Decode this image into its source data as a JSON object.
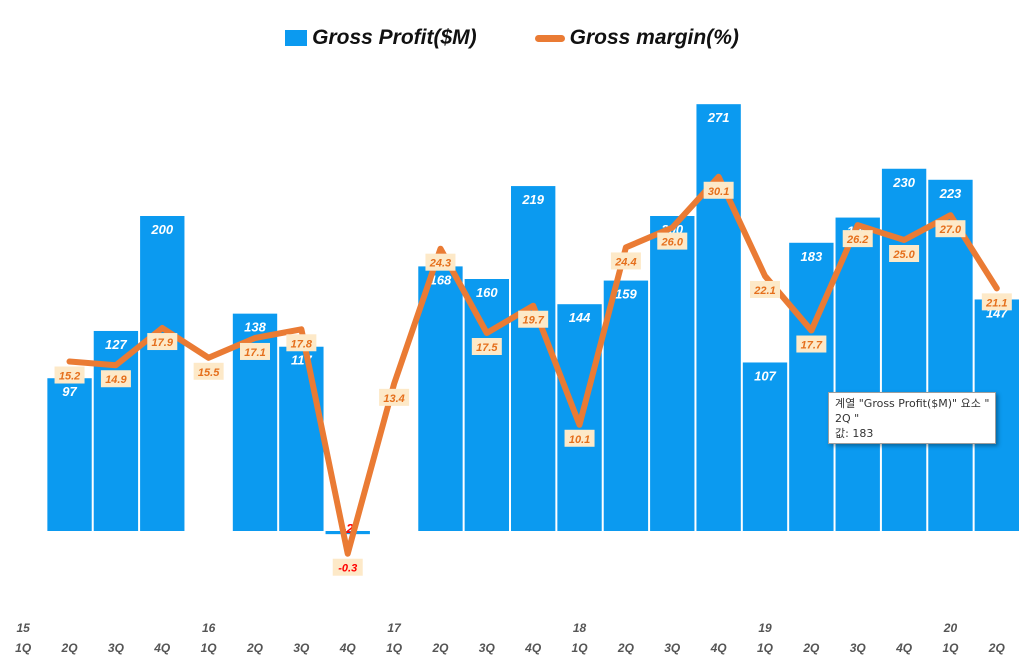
{
  "legend": {
    "bar_label": "Gross Profit($M)",
    "line_label": "Gross margin(%)"
  },
  "tooltip": {
    "line1": "계열 \"Gross Profit($M)\" 요소 \"",
    "line2": "2Q \"",
    "line3": "값: 183"
  },
  "colors": {
    "bar": "#0b9af0",
    "line": "#ea7b34",
    "line_label_bg": "#fde9c8",
    "line_label_text": "#e56f1c",
    "negative_label": "#ff0000",
    "axis_text": "#555555"
  },
  "chart_data": {
    "type": "bar",
    "title": "",
    "categories": [
      "1Q",
      "2Q",
      "3Q",
      "4Q",
      "1Q",
      "2Q",
      "3Q",
      "4Q",
      "1Q",
      "2Q",
      "3Q",
      "4Q",
      "1Q",
      "2Q",
      "3Q",
      "4Q",
      "1Q",
      "2Q",
      "3Q",
      "4Q",
      "1Q",
      "2Q"
    ],
    "year_labels": [
      "15",
      "",
      "",
      "",
      "16",
      "",
      "",
      "",
      "17",
      "",
      "",
      "",
      "18",
      "",
      "",
      "",
      "19",
      "",
      "",
      "",
      "20",
      ""
    ],
    "series": [
      {
        "name": "Gross Profit($M)",
        "type": "bar",
        "values": [
          null,
          97,
          127,
          200,
          null,
          138,
          117,
          -2,
          null,
          168,
          160,
          219,
          144,
          159,
          200,
          271,
          107,
          183,
          199,
          230,
          223,
          147
        ]
      },
      {
        "name": "Gross margin(%)",
        "type": "line",
        "values": [
          null,
          15.2,
          14.9,
          17.9,
          15.5,
          17.1,
          17.8,
          -0.3,
          13.4,
          24.3,
          17.5,
          19.7,
          10.1,
          24.4,
          26.0,
          30.1,
          22.1,
          17.7,
          26.2,
          25.0,
          27.0,
          21.1
        ]
      }
    ],
    "ylim_bar": [
      -20,
      340
    ],
    "ylim_line": [
      -1.7,
      44
    ]
  }
}
